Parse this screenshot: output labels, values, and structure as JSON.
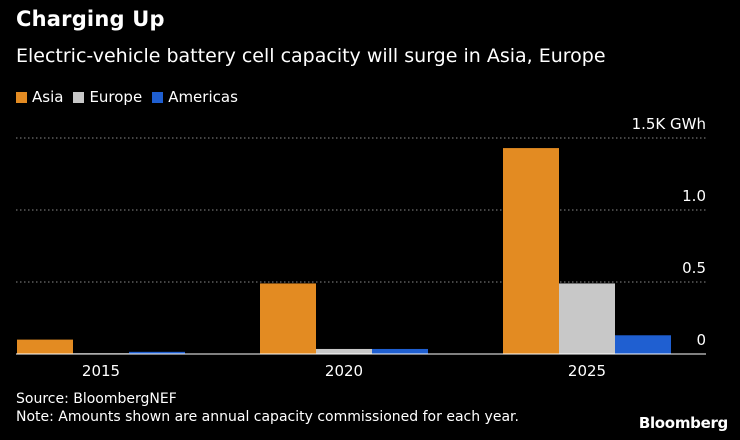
{
  "header": {
    "title": "Charging Up",
    "subtitle": "Electric-vehicle battery cell capacity will surge in Asia, Europe"
  },
  "footer": {
    "source": "Source: BloombergNEF",
    "note": "Note: Amounts shown are annual capacity commissioned for each year.",
    "brand": "Bloomberg"
  },
  "colors": {
    "Asia": "#E38B22",
    "Europe": "#C8C8C8",
    "Americas": "#1F5FD1",
    "gridline": "#8a8a8a"
  },
  "chart_data": {
    "type": "bar",
    "title": "Charging Up",
    "subtitle": "Electric-vehicle battery cell capacity will surge in Asia, Europe",
    "categories": [
      "2015",
      "2020",
      "2025"
    ],
    "series": [
      {
        "name": "Asia",
        "values": [
          0.1,
          0.49,
          1.43
        ]
      },
      {
        "name": "Europe",
        "values": [
          0.005,
          0.035,
          0.49
        ]
      },
      {
        "name": "Americas",
        "values": [
          0.015,
          0.035,
          0.13
        ]
      }
    ],
    "ylim": [
      0,
      1.5
    ],
    "yticks": [
      {
        "value": 0,
        "label": "0"
      },
      {
        "value": 0.5,
        "label": "0.5"
      },
      {
        "value": 1.0,
        "label": "1.0"
      },
      {
        "value": 1.5,
        "label": "1.5K GWh"
      }
    ],
    "xlabel": "",
    "ylabel": "",
    "unit": "K GWh",
    "grid": true,
    "legend_position": "top-left"
  }
}
